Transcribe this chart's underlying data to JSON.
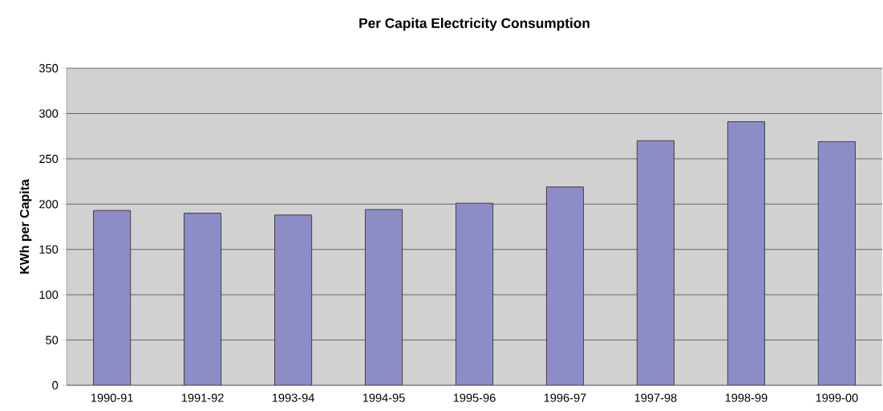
{
  "chart_data": {
    "type": "bar",
    "title": "Per Capita Electricity Consumption",
    "ylabel": "KWh per Capita",
    "categories": [
      "1990-91",
      "1991-92",
      "1993-94",
      "1994-95",
      "1995-96",
      "1996-97",
      "1997-98",
      "1998-99",
      "1999-00"
    ],
    "values": [
      193,
      190,
      188,
      194,
      201,
      219,
      270,
      291,
      269
    ],
    "color": "#8c8dc6",
    "ylim": [
      0,
      350
    ],
    "yticks": [
      0,
      50,
      100,
      150,
      200,
      250,
      300,
      350
    ],
    "grid": "y"
  }
}
